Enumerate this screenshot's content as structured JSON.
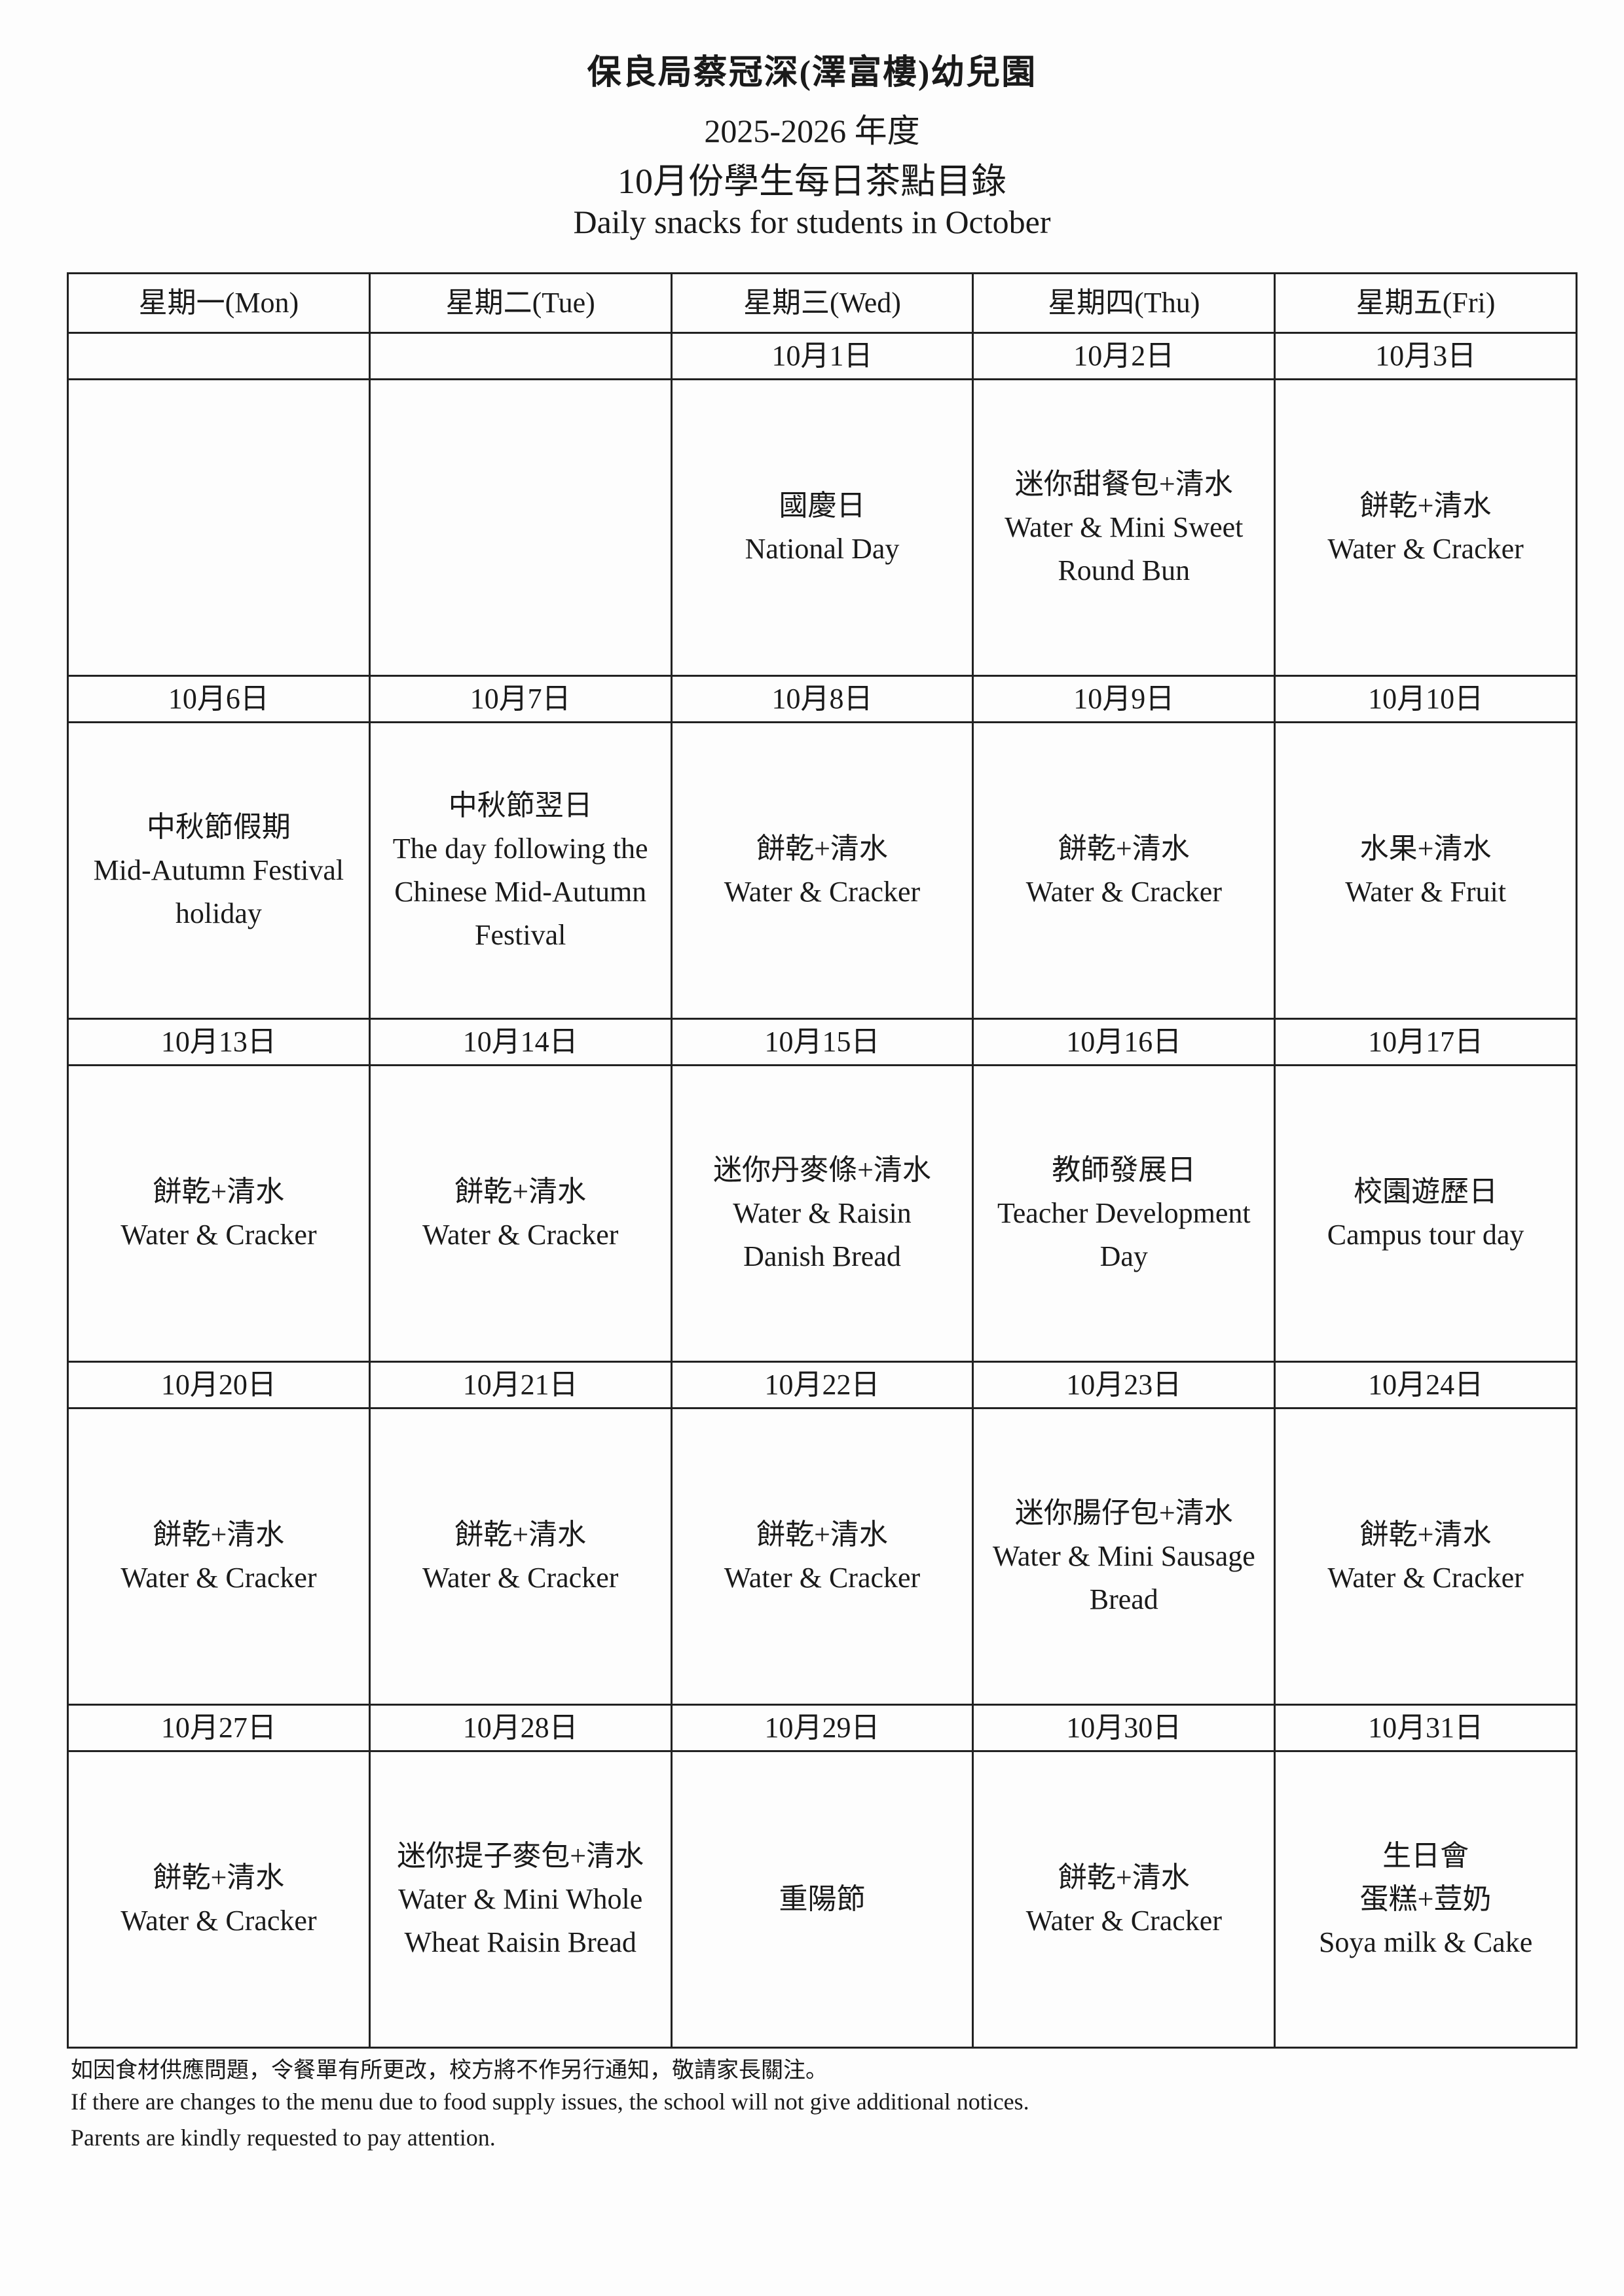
{
  "header": {
    "school": "保良局蔡冠深(澤富樓)幼兒園",
    "year": "2025-2026 年度",
    "title_zh": "10月份學生每日茶點目錄",
    "title_en": "Daily snacks for students in October"
  },
  "days": [
    "星期一(Mon)",
    "星期二(Tue)",
    "星期三(Wed)",
    "星期四(Thu)",
    "星期五(Fri)"
  ],
  "weeks": [
    {
      "dates": [
        "",
        "",
        "10月1日",
        "10月2日",
        "10月3日"
      ],
      "items": [
        [],
        [],
        [
          "國慶日",
          "National Day"
        ],
        [
          "迷你甜餐包+清水",
          "Water & Mini Sweet",
          "Round Bun"
        ],
        [
          "餅乾+清水",
          "Water & Cracker"
        ]
      ]
    },
    {
      "dates": [
        "10月6日",
        "10月7日",
        "10月8日",
        "10月9日",
        "10月10日"
      ],
      "items": [
        [
          "中秋節假期",
          "Mid-Autumn Festival",
          "holiday"
        ],
        [
          "中秋節翌日",
          "The day following the",
          "Chinese Mid-Autumn",
          "Festival"
        ],
        [
          "餅乾+清水",
          "Water & Cracker"
        ],
        [
          "餅乾+清水",
          "Water & Cracker"
        ],
        [
          "水果+清水",
          "Water & Fruit"
        ]
      ]
    },
    {
      "dates": [
        "10月13日",
        "10月14日",
        "10月15日",
        "10月16日",
        "10月17日"
      ],
      "items": [
        [
          "餅乾+清水",
          "Water & Cracker"
        ],
        [
          "餅乾+清水",
          "Water & Cracker"
        ],
        [
          "迷你丹麥條+清水",
          "Water & Raisin",
          "Danish Bread"
        ],
        [
          "教師發展日",
          "Teacher Development",
          "Day"
        ],
        [
          "校園遊歷日",
          "Campus tour day"
        ]
      ]
    },
    {
      "dates": [
        "10月20日",
        "10月21日",
        "10月22日",
        "10月23日",
        "10月24日"
      ],
      "items": [
        [
          "餅乾+清水",
          "Water & Cracker"
        ],
        [
          "餅乾+清水",
          "Water & Cracker"
        ],
        [
          "餅乾+清水",
          "Water & Cracker"
        ],
        [
          "迷你腸仔包+清水",
          "Water & Mini Sausage",
          "Bread"
        ],
        [
          "餅乾+清水",
          "Water & Cracker"
        ]
      ]
    },
    {
      "dates": [
        "10月27日",
        "10月28日",
        "10月29日",
        "10月30日",
        "10月31日"
      ],
      "items": [
        [
          "餅乾+清水",
          "Water & Cracker"
        ],
        [
          "迷你提子麥包+清水",
          "Water & Mini Whole",
          "Wheat Raisin Bread"
        ],
        [
          "重陽節"
        ],
        [
          "餅乾+清水",
          "Water & Cracker"
        ],
        [
          "生日會",
          "蛋糕+荳奶",
          "Soya milk & Cake"
        ]
      ]
    }
  ],
  "notes": {
    "zh": "如因食材供應問題，令餐單有所更改，校方將不作另行通知，敬請家長關注。",
    "en1": "If there are changes to the menu due to food supply issues, the school will not give additional notices.",
    "en2": "Parents are kindly requested to pay attention."
  }
}
